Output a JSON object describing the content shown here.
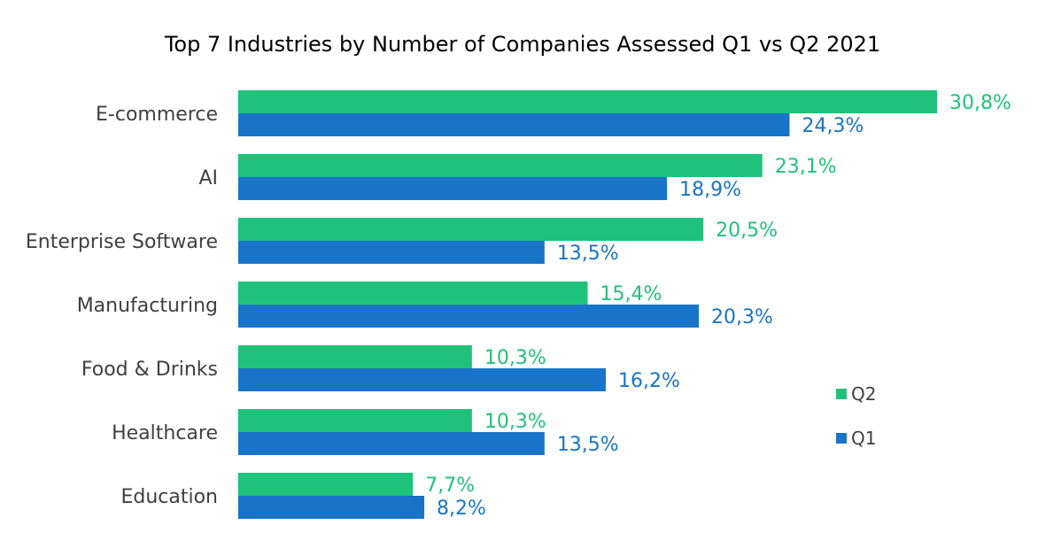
{
  "chart_data": {
    "type": "bar",
    "orientation": "horizontal",
    "title": "Top 7 Industries by Number of Companies Assessed Q1 vs Q2 2021",
    "categories": [
      "E-commerce",
      "AI",
      "Enterprise Software",
      "Manufacturing",
      "Food & Drinks",
      "Healthcare",
      "Education"
    ],
    "series": [
      {
        "name": "Q2",
        "color": "#1ec27a",
        "values": [
          30.8,
          23.1,
          20.5,
          15.4,
          10.3,
          10.3,
          7.7
        ],
        "labels": [
          "30,8%",
          "23,1%",
          "20,5%",
          "15,4%",
          "10,3%",
          "10,3%",
          "7,7%"
        ]
      },
      {
        "name": "Q1",
        "color": "#1874c8",
        "values": [
          24.3,
          18.9,
          13.5,
          20.3,
          16.2,
          13.5,
          8.2
        ],
        "labels": [
          "24,3%",
          "18,9%",
          "13,5%",
          "20,3%",
          "16,2%",
          "13,5%",
          "8,2%"
        ]
      }
    ],
    "xlim": [
      0,
      30.8
    ],
    "grid": false,
    "legend": "right"
  }
}
